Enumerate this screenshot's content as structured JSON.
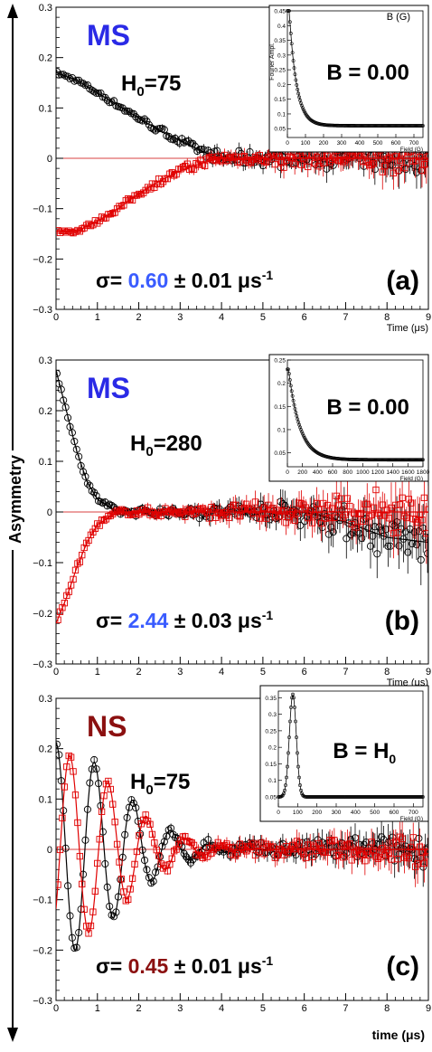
{
  "figure": {
    "ylabel": "Asymmetry",
    "xlabel": "time (μs)",
    "colors": {
      "black": "#000000",
      "red": "#e00000",
      "blue": "#1f3fff",
      "dark_red": "#8b1010",
      "text": "#000000"
    }
  },
  "chart_data": [
    {
      "type": "scatter",
      "panel": "(a)",
      "state": "MS",
      "state_color": "#2a2ae6",
      "field_label": "H",
      "field_sub": "0",
      "field_value": "=75",
      "sigma_prefix": "σ= ",
      "sigma_value": "0.60",
      "sigma_value_color": "#3a5cff",
      "sigma_suffix": " ± 0.01 μs",
      "sigma_exp": "-1",
      "xlabel": "Time (μs)",
      "xlim": [
        0,
        9
      ],
      "ylim": [
        -0.3,
        0.3
      ],
      "xticks": [
        0,
        1,
        2,
        3,
        4,
        5,
        6,
        7,
        8,
        9
      ],
      "yticks": [
        -0.3,
        -0.2,
        -0.1,
        0,
        0.1,
        0.2,
        0.3
      ],
      "ytick_labels": [
        "−0.3",
        "−0.2",
        "−0.1",
        "0",
        "0.1",
        "0.2",
        "0.3"
      ],
      "series": [
        {
          "color": "#000000",
          "marker": "circle",
          "model": "damped_linear",
          "points": [
            [
              0.0,
              0.17
            ],
            [
              0.5,
              0.155
            ],
            [
              1.0,
              0.13
            ],
            [
              1.5,
              0.105
            ],
            [
              2.0,
              0.08
            ],
            [
              2.5,
              0.055
            ],
            [
              3.0,
              0.035
            ],
            [
              3.5,
              0.015
            ],
            [
              4.0,
              0.0
            ],
            [
              5.0,
              0.0
            ],
            [
              6.0,
              0.0
            ],
            [
              7.0,
              0.0
            ],
            [
              8.0,
              0.0
            ],
            [
              9.0,
              0.0
            ]
          ]
        },
        {
          "color": "#e00000",
          "marker": "square",
          "model": "damped_linear",
          "points": [
            [
              0.0,
              -0.145
            ],
            [
              0.5,
              -0.145
            ],
            [
              1.0,
              -0.125
            ],
            [
              1.5,
              -0.1
            ],
            [
              2.0,
              -0.07
            ],
            [
              2.5,
              -0.045
            ],
            [
              3.0,
              -0.025
            ],
            [
              3.5,
              -0.01
            ],
            [
              4.0,
              0.0
            ],
            [
              5.0,
              0.0
            ],
            [
              6.0,
              0.0
            ],
            [
              7.0,
              0.0
            ],
            [
              8.0,
              0.0
            ],
            [
              9.0,
              0.0
            ]
          ]
        }
      ],
      "inset": {
        "title": "B (G)",
        "ylabel": "Fourier Ampl.",
        "xlabel": "Field (G)",
        "b_prefix": "B = ",
        "b_value": "0.00",
        "b_sub": "",
        "xlim": [
          0,
          750
        ],
        "ylim": [
          0.02,
          0.45
        ],
        "xticks": [
          0,
          100,
          200,
          300,
          400,
          500,
          600,
          700
        ],
        "yticks": [
          0.05,
          0.1,
          0.15,
          0.2,
          0.25,
          0.3,
          0.35,
          0.4,
          0.45
        ],
        "peak_x": 10,
        "peak_y": 0.45,
        "baseline": 0.06,
        "shape": "decay",
        "width": 40
      }
    },
    {
      "type": "scatter",
      "panel": "(b)",
      "state": "MS",
      "state_color": "#2a2ae6",
      "field_label": "H",
      "field_sub": "0",
      "field_value": "=280",
      "sigma_prefix": "σ= ",
      "sigma_value": "2.44",
      "sigma_value_color": "#3a5cff",
      "sigma_suffix": " ± 0.03 μs",
      "sigma_exp": "-1",
      "xlabel": "Time (μs)",
      "xlim": [
        0,
        9
      ],
      "ylim": [
        -0.3,
        0.3
      ],
      "xticks": [
        0,
        1,
        2,
        3,
        4,
        5,
        6,
        7,
        8,
        9
      ],
      "yticks": [
        -0.3,
        -0.2,
        -0.1,
        0,
        0.1,
        0.2,
        0.3
      ],
      "ytick_labels": [
        "−0.3",
        "−0.2",
        "−0.1",
        "0",
        "0.1",
        "0.2",
        "0.3"
      ],
      "series": [
        {
          "color": "#000000",
          "marker": "circle",
          "model": "fast_decay",
          "points": [
            [
              0.0,
              0.28
            ],
            [
              0.25,
              0.2
            ],
            [
              0.5,
              0.12
            ],
            [
              0.75,
              0.06
            ],
            [
              1.0,
              0.025
            ],
            [
              1.5,
              0.0
            ],
            [
              2.0,
              0.0
            ],
            [
              3.0,
              0.0
            ],
            [
              4.0,
              0.0
            ],
            [
              5.0,
              0.0
            ],
            [
              6.0,
              0.0
            ],
            [
              7.0,
              -0.02
            ],
            [
              8.0,
              -0.05
            ],
            [
              9.0,
              -0.06
            ]
          ]
        },
        {
          "color": "#e00000",
          "marker": "square",
          "model": "fast_decay",
          "points": [
            [
              0.0,
              -0.22
            ],
            [
              0.25,
              -0.17
            ],
            [
              0.5,
              -0.11
            ],
            [
              0.75,
              -0.06
            ],
            [
              1.0,
              -0.025
            ],
            [
              1.5,
              0.0
            ],
            [
              2.0,
              0.0
            ],
            [
              3.0,
              0.0
            ],
            [
              4.0,
              0.0
            ],
            [
              5.0,
              0.0
            ],
            [
              6.0,
              0.0
            ],
            [
              7.0,
              0.0
            ],
            [
              8.0,
              0.0
            ],
            [
              9.0,
              0.0
            ]
          ]
        }
      ],
      "inset": {
        "title": "",
        "ylabel": "",
        "xlabel": "Field (G)",
        "b_prefix": "B = ",
        "b_value": "0.00",
        "b_sub": "",
        "xlim": [
          0,
          1800
        ],
        "ylim": [
          0.02,
          0.25
        ],
        "xticks": [
          0,
          200,
          400,
          600,
          800,
          1000,
          1200,
          1400,
          1600,
          1800
        ],
        "yticks": [
          0.05,
          0.1,
          0.15,
          0.2,
          0.25
        ],
        "peak_x": 15,
        "peak_y": 0.23,
        "baseline": 0.035,
        "shape": "decay",
        "width": 150
      }
    },
    {
      "type": "scatter",
      "panel": "(c)",
      "state": "NS",
      "state_color": "#8b1010",
      "field_label": "H",
      "field_sub": "0",
      "field_value": "=75",
      "sigma_prefix": "σ= ",
      "sigma_value": "0.45",
      "sigma_value_color": "#8b1010",
      "sigma_suffix": " ± 0.01 μs",
      "sigma_exp": "-1",
      "xlabel": "",
      "xlim": [
        0,
        9
      ],
      "ylim": [
        -0.3,
        0.3
      ],
      "xticks": [
        0,
        1,
        2,
        3,
        4,
        5,
        6,
        7,
        8,
        9
      ],
      "yticks": [
        -0.3,
        -0.2,
        -0.1,
        0,
        0.1,
        0.2,
        0.3
      ],
      "ytick_labels": [
        "−0.3",
        "−0.2",
        "−0.1",
        "0",
        "0.1",
        "0.2",
        "0.3"
      ],
      "series": [
        {
          "color": "#000000",
          "marker": "circle",
          "model": "oscillation",
          "points": [
            [
              0.0,
              0.21
            ],
            [
              0.3,
              0.01
            ],
            [
              0.6,
              -0.17
            ],
            [
              0.9,
              -0.15
            ],
            [
              1.2,
              0.08
            ],
            [
              1.5,
              0.18
            ],
            [
              1.8,
              0.03
            ],
            [
              2.1,
              -0.13
            ],
            [
              2.4,
              -0.12
            ],
            [
              2.7,
              0.08
            ],
            [
              3.0,
              0.12
            ],
            [
              4.0,
              -0.05
            ],
            [
              5.0,
              0.02
            ],
            [
              6.0,
              0.0
            ],
            [
              7.0,
              0.0
            ],
            [
              8.0,
              0.0
            ],
            [
              9.0,
              0.0
            ]
          ]
        },
        {
          "color": "#e00000",
          "marker": "square",
          "model": "oscillation",
          "points": [
            [
              0.0,
              -0.17
            ],
            [
              0.3,
              -0.07
            ],
            [
              0.6,
              0.19
            ],
            [
              0.9,
              0.05
            ],
            [
              1.2,
              -0.16
            ],
            [
              1.5,
              -0.12
            ],
            [
              1.8,
              0.16
            ],
            [
              2.1,
              0.11
            ],
            [
              2.4,
              -0.1
            ],
            [
              2.7,
              -0.11
            ],
            [
              3.0,
              0.05
            ],
            [
              4.0,
              0.03
            ],
            [
              5.0,
              -0.02
            ],
            [
              6.0,
              0.0
            ],
            [
              7.0,
              0.0
            ],
            [
              8.0,
              0.0
            ],
            [
              9.0,
              0.0
            ]
          ]
        }
      ],
      "inset": {
        "title": "",
        "ylabel": "",
        "xlabel": "Field (G)",
        "b_prefix": "B = H",
        "b_value": "",
        "b_sub": "0",
        "xlim": [
          0,
          750
        ],
        "ylim": [
          0.02,
          0.37
        ],
        "xticks": [
          0,
          100,
          200,
          300,
          400,
          500,
          600,
          700
        ],
        "yticks": [
          0.05,
          0.1,
          0.15,
          0.2,
          0.25,
          0.3,
          0.35
        ],
        "peak_x": 75,
        "peak_y": 0.36,
        "baseline": 0.05,
        "shape": "gauss",
        "width": 18
      }
    }
  ]
}
